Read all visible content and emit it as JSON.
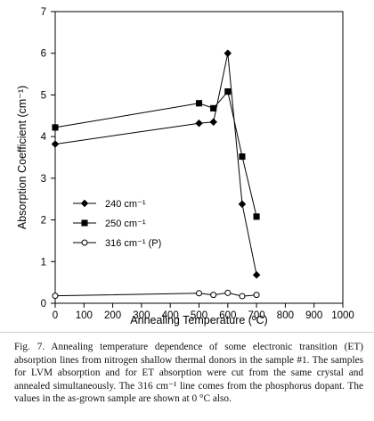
{
  "chart_data": {
    "type": "line",
    "xlabel": "Annealing Temperature (ºC)",
    "ylabel": "Absorption Coefficient (cm⁻¹)",
    "xlim": [
      0,
      1000
    ],
    "ylim": [
      0,
      7
    ],
    "xticks": [
      0,
      100,
      200,
      300,
      400,
      500,
      600,
      700,
      800,
      900,
      1000
    ],
    "yticks": [
      0,
      1,
      2,
      3,
      4,
      5,
      6,
      7
    ],
    "grid": false,
    "legend_position": "lower-left",
    "series": [
      {
        "name": "240 cm⁻¹",
        "marker": "diamond-filled",
        "x": [
          0,
          500,
          550,
          600,
          650,
          700
        ],
        "y": [
          3.82,
          4.32,
          4.35,
          6.0,
          2.38,
          0.68
        ]
      },
      {
        "name": "250 cm⁻¹",
        "marker": "square-filled",
        "x": [
          0,
          500,
          550,
          600,
          650,
          700
        ],
        "y": [
          4.22,
          4.8,
          4.68,
          5.08,
          3.52,
          2.08
        ]
      },
      {
        "name": "316 cm⁻¹ (P)",
        "marker": "circle-open",
        "x": [
          0,
          500,
          550,
          600,
          650,
          700
        ],
        "y": [
          0.18,
          0.24,
          0.2,
          0.25,
          0.17,
          0.2
        ]
      }
    ]
  },
  "caption": {
    "text": "Fig. 7. Annealing temperature dependence of some electronic transition (ET) absorption lines from nitrogen shallow thermal donors in the sample #1. The samples for LVM absorption and for ET absorption were cut from the same crystal and annealed simultaneously. The 316 cm⁻¹ line comes from the phosphorus dopant. The values in the as-grown sample are shown at 0 °C also."
  }
}
